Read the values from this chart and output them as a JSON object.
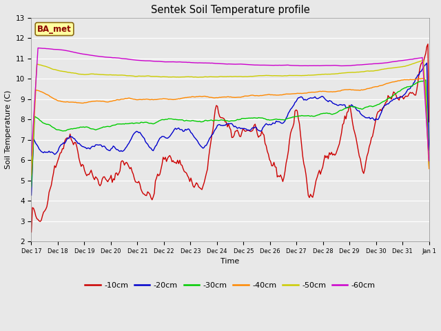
{
  "title": "Sentek Soil Temperature profile",
  "xlabel": "Time",
  "ylabel": "Soil Temperature (C)",
  "ylim": [
    2.0,
    13.0
  ],
  "yticks": [
    2.0,
    3.0,
    4.0,
    5.0,
    6.0,
    7.0,
    8.0,
    9.0,
    10.0,
    11.0,
    12.0,
    13.0
  ],
  "station_label": "BA_met",
  "colors": {
    "-10cm": "#cc0000",
    "-20cm": "#0000cc",
    "-30cm": "#00cc00",
    "-40cm": "#ff8800",
    "-50cm": "#cccc00",
    "-60cm": "#cc00cc"
  },
  "legend_labels": [
    "-10cm",
    "-20cm",
    "-30cm",
    "-40cm",
    "-50cm",
    "-60cm"
  ],
  "bg_color": "#e8e8e8",
  "fig_color": "#e8e8e8",
  "n_points": 360,
  "xtick_labels": [
    "Dec 17",
    "Dec 18",
    "Dec 19",
    "Dec 20",
    "Dec 21",
    "Dec 22",
    "Dec 23",
    "Dec 24",
    "Dec 25",
    "Dec 26",
    "Dec 27",
    "Dec 28",
    "Dec 29",
    "Dec 30",
    "Dec 31",
    "Jan 1"
  ]
}
